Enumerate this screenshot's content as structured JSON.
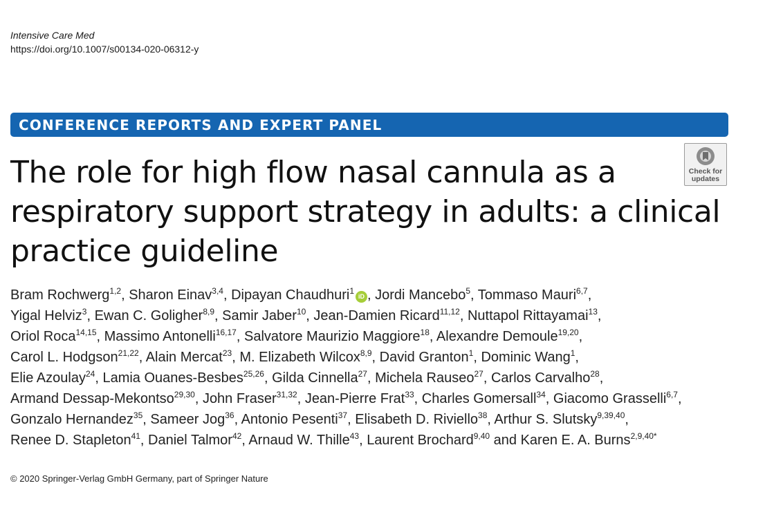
{
  "header": {
    "journal": "Intensive Care Med",
    "doi": "https://doi.org/10.1007/s00134-020-06312-y"
  },
  "banner": {
    "label": "CONFERENCE REPORTS AND EXPERT PANEL",
    "color": "#1565b1"
  },
  "check_updates": {
    "line1": "Check for",
    "line2": "updates"
  },
  "title": {
    "lines": [
      "The role for high flow nasal cannula as a",
      "respiratory support strategy in adults: a clinical",
      "practice guideline"
    ]
  },
  "authors": {
    "orcid_label": "iD",
    "lines": [
      [
        {
          "name": "Bram Rochwerg",
          "sup": "1,2",
          "sep": ", "
        },
        {
          "name": "Sharon Einav",
          "sup": "3,4",
          "sep": ", "
        },
        {
          "name": "Dipayan Chaudhuri",
          "sup": "1",
          "orcid": true,
          "sep": ", "
        },
        {
          "name": "Jordi Mancebo",
          "sup": "5",
          "sep": ", "
        },
        {
          "name": "Tommaso Mauri",
          "sup": "6,7",
          "sep": ","
        }
      ],
      [
        {
          "name": "Yigal Helviz",
          "sup": "3",
          "sep": ", "
        },
        {
          "name": "Ewan C. Goligher",
          "sup": "8,9",
          "sep": ", "
        },
        {
          "name": "Samir Jaber",
          "sup": "10",
          "sep": ", "
        },
        {
          "name": "Jean-Damien Ricard",
          "sup": "11,12",
          "sep": ", "
        },
        {
          "name": "Nuttapol Rittayamai",
          "sup": "13",
          "sep": ","
        }
      ],
      [
        {
          "name": "Oriol Roca",
          "sup": "14,15",
          "sep": ", "
        },
        {
          "name": "Massimo Antonelli",
          "sup": "16,17",
          "sep": ", "
        },
        {
          "name": "Salvatore Maurizio Maggiore",
          "sup": "18",
          "sep": ", "
        },
        {
          "name": "Alexandre Demoule",
          "sup": "19,20",
          "sep": ","
        }
      ],
      [
        {
          "name": "Carol L. Hodgson",
          "sup": "21,22",
          "sep": ", "
        },
        {
          "name": "Alain Mercat",
          "sup": "23",
          "sep": ", "
        },
        {
          "name": "M. Elizabeth Wilcox",
          "sup": "8,9",
          "sep": ", "
        },
        {
          "name": "David Granton",
          "sup": "1",
          "sep": ", "
        },
        {
          "name": "Dominic Wang",
          "sup": "1",
          "sep": ","
        }
      ],
      [
        {
          "name": "Elie Azoulay",
          "sup": "24",
          "sep": ", "
        },
        {
          "name": "Lamia Ouanes-Besbes",
          "sup": "25,26",
          "sep": ", "
        },
        {
          "name": "Gilda Cinnella",
          "sup": "27",
          "sep": ", "
        },
        {
          "name": "Michela Rauseo",
          "sup": "27",
          "sep": ", "
        },
        {
          "name": "Carlos Carvalho",
          "sup": "28",
          "sep": ","
        }
      ],
      [
        {
          "name": "Armand Dessap-Mekontso",
          "sup": "29,30",
          "sep": ", "
        },
        {
          "name": "John Fraser",
          "sup": "31,32",
          "sep": ", "
        },
        {
          "name": "Jean-Pierre Frat",
          "sup": "33",
          "sep": ", "
        },
        {
          "name": "Charles Gomersall",
          "sup": "34",
          "sep": ", "
        },
        {
          "name": "Giacomo Grasselli",
          "sup": "6,7",
          "sep": ","
        }
      ],
      [
        {
          "name": "Gonzalo Hernandez",
          "sup": "35",
          "sep": ", "
        },
        {
          "name": "Sameer Jog",
          "sup": "36",
          "sep": ", "
        },
        {
          "name": "Antonio Pesenti",
          "sup": "37",
          "sep": ", "
        },
        {
          "name": "Elisabeth D. Riviello",
          "sup": "38",
          "sep": ", "
        },
        {
          "name": "Arthur S. Slutsky",
          "sup": "9,39,40",
          "sep": ","
        }
      ],
      [
        {
          "name": "Renee D. Stapleton",
          "sup": "41",
          "sep": ", "
        },
        {
          "name": "Daniel Talmor",
          "sup": "42",
          "sep": ", "
        },
        {
          "name": "Arnaud W. Thille",
          "sup": "43",
          "sep": ", "
        },
        {
          "name": "Laurent Brochard",
          "sup": "9,40",
          "sep": " and "
        },
        {
          "name": "Karen E. A. Burns",
          "sup": "2,9,40*",
          "sep": ""
        }
      ]
    ]
  },
  "footer": {
    "copyright": "© 2020 Springer-Verlag GmbH Germany, part of Springer Nature"
  }
}
